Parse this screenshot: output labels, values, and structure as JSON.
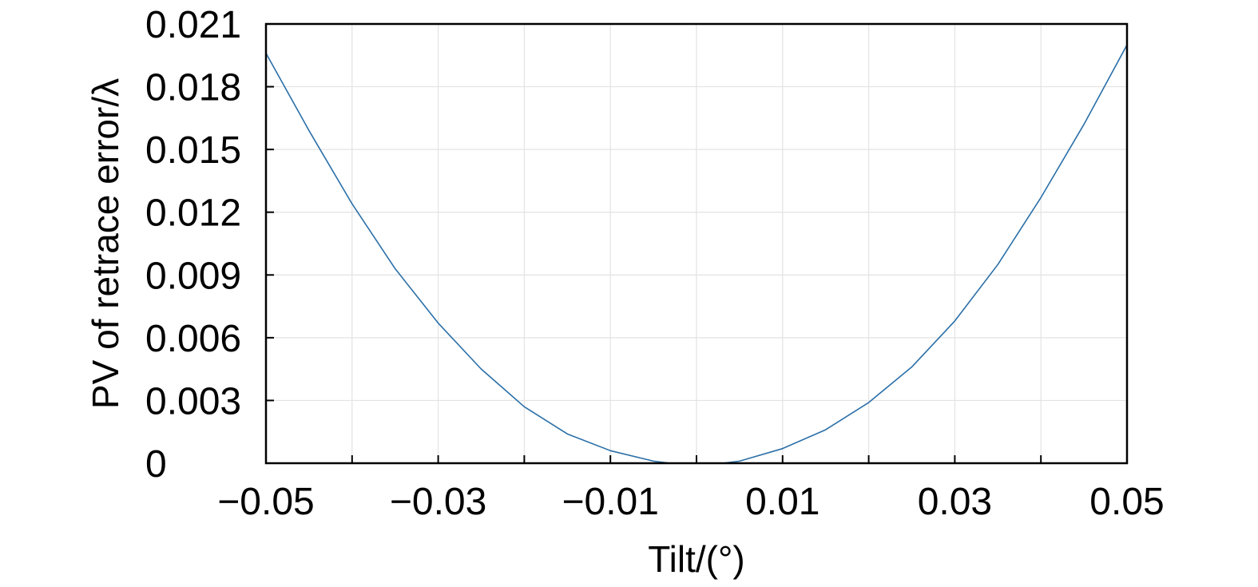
{
  "chart_data": {
    "type": "line",
    "title": "",
    "xlabel": "Tilt/(°)",
    "ylabel": "PV of retrace error/λ",
    "xlim": [
      -0.05,
      0.05
    ],
    "ylim": [
      0,
      0.021
    ],
    "x_ticks": [
      -0.05,
      -0.03,
      -0.01,
      0.01,
      0.03,
      0.05
    ],
    "x_tick_labels": [
      "−0.05",
      "−0.03",
      "−0.01",
      "0.01",
      "0.03",
      "0.05"
    ],
    "x_grid": [
      -0.05,
      -0.04,
      -0.03,
      -0.02,
      -0.01,
      0.0,
      0.01,
      0.02,
      0.03,
      0.04,
      0.05
    ],
    "y_ticks": [
      0,
      0.003,
      0.006,
      0.009,
      0.012,
      0.015,
      0.018,
      0.021
    ],
    "y_tick_labels": [
      "0",
      "0.003",
      "0.006",
      "0.009",
      "0.012",
      "0.015",
      "0.018",
      "0.021"
    ],
    "grid": true,
    "legend": "none",
    "series": [
      {
        "color": "#2a6fa8",
        "x": [
          -0.05,
          -0.045,
          -0.04,
          -0.035,
          -0.03,
          -0.025,
          -0.02,
          -0.015,
          -0.01,
          -0.005,
          -0.003,
          0.0,
          0.003,
          0.005,
          0.01,
          0.015,
          0.02,
          0.025,
          0.03,
          0.035,
          0.04,
          0.045,
          0.05
        ],
        "y": [
          0.0196,
          0.0159,
          0.0124,
          0.0093,
          0.0067,
          0.0045,
          0.0027,
          0.0014,
          0.0006,
          0.0001,
          0.0,
          0.0,
          0.0,
          0.0001,
          0.0007,
          0.0016,
          0.0029,
          0.0046,
          0.0068,
          0.0095,
          0.0127,
          0.0162,
          0.02
        ]
      }
    ]
  }
}
